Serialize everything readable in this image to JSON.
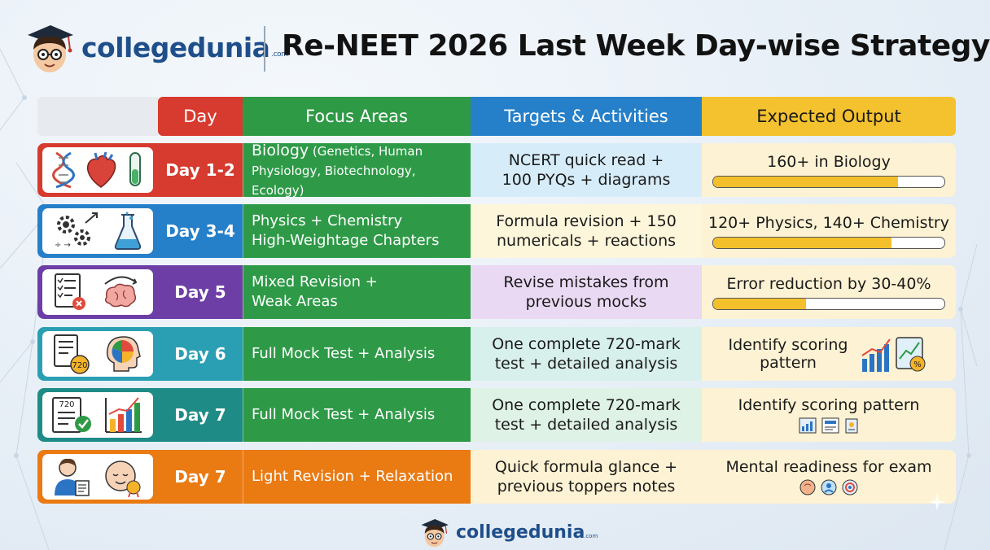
{
  "brand": {
    "name": "collegedunia",
    "tld": ".com"
  },
  "title": "Re-NEET 2026 Last Week Day-wise Strategy",
  "table": {
    "headers": {
      "day": "Day",
      "focus": "Focus Areas",
      "targets": "Targets & Activities",
      "output": "Expected Output"
    },
    "rows": [
      {
        "day": "Day 1-2",
        "focus_main": "Biology",
        "focus_sub": " (Genetics, Human Physiology, Biotechnology, Ecology)",
        "targets_line1": "NCERT quick read +",
        "targets_line2": "100 PYQs + diagrams",
        "output": "160+ in Biology",
        "progress": 0.8,
        "icons": [
          "dna-icon",
          "heart-icon",
          "test-tube-icon"
        ]
      },
      {
        "day": "Day 3-4",
        "focus_line1": "Physics + Chemistry",
        "focus_line2": "High-Weightage Chapters",
        "targets_line1": "Formula revision + 150",
        "targets_line2": "numericals + reactions",
        "output": "120+ Physics, 140+ Chemistry",
        "progress": 0.77,
        "icons": [
          "gears-icon",
          "flask-icon"
        ]
      },
      {
        "day": "Day 5",
        "focus_line1": "Mixed Revision +",
        "focus_line2": "Weak Areas",
        "targets_line1": "Revise mistakes from",
        "targets_line2": "previous mocks",
        "output": "Error reduction by 30-40%",
        "progress": 0.4,
        "icons": [
          "checklist-icon",
          "brain-icon"
        ]
      },
      {
        "day": "Day 6",
        "focus_line1": "Full Mock Test + Analysis",
        "targets_line1": "One complete 720-mark",
        "targets_line2": "test + detailed analysis",
        "output_line1": "Identify scoring",
        "output_line2": "pattern",
        "icons": [
          "score-sheet-icon",
          "head-pie-icon"
        ],
        "badge": "720"
      },
      {
        "day": "Day 7",
        "focus_line1": "Full Mock Test + Analysis",
        "targets_line1": "One complete 720-mark",
        "targets_line2": "test + detailed analysis",
        "output": "Identify scoring pattern",
        "icons": [
          "score-sheet-icon",
          "bar-chart-icon"
        ],
        "badge": "720"
      },
      {
        "day": "Day 7",
        "focus_line1": "Light Revision + Relaxation",
        "targets_line1": "Quick formula glance +",
        "targets_line2": "previous toppers notes",
        "output": "Mental readiness for exam",
        "icons": [
          "student-icon",
          "calm-face-icon"
        ]
      }
    ]
  },
  "colors": {
    "day_red": "#d73a2e",
    "focus_green": "#2e9a47",
    "targets_blue": "#2680c9",
    "output_yellow": "#f4c22f",
    "row1": "#d73a2e",
    "row2": "#2680c9",
    "row3": "#6d3fa6",
    "row4": "#2a9fb3",
    "row5": "#1f8b86",
    "row6": "#ea7a12"
  }
}
